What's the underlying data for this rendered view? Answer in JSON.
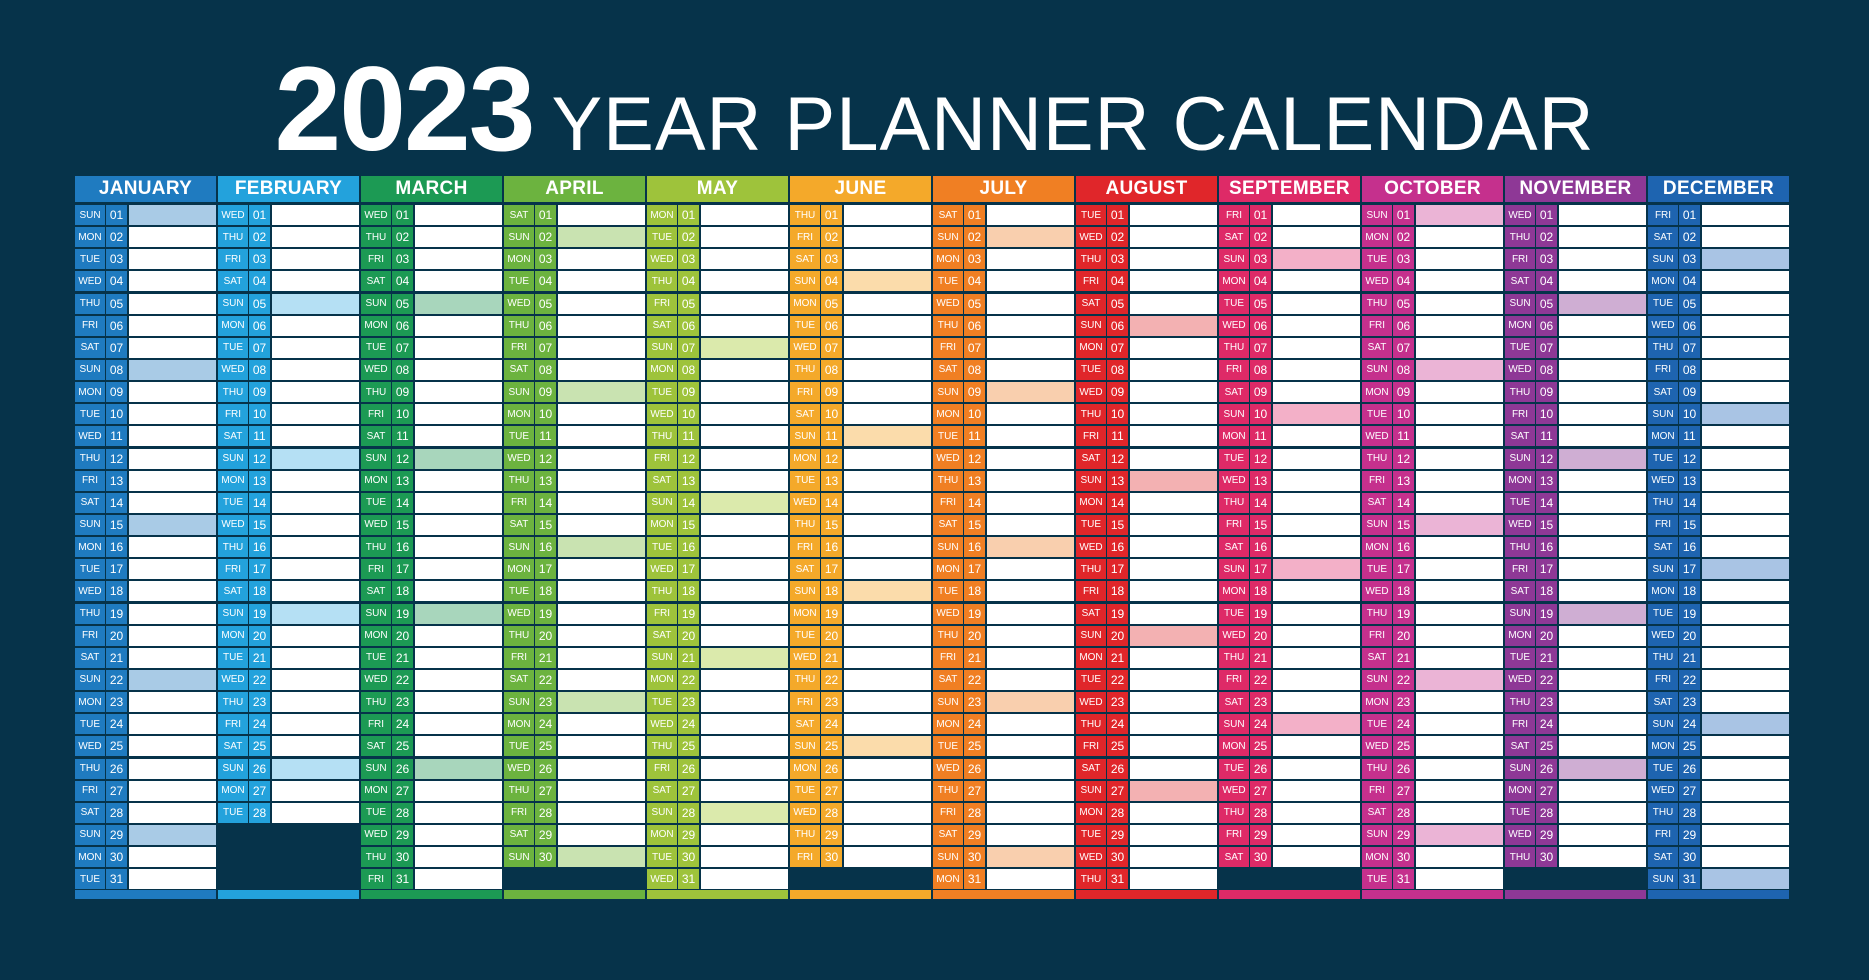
{
  "header": {
    "year": "2023",
    "subtitle": "YEAR PLANNER CALENDAR"
  },
  "months": [
    {
      "name": "JANUARY",
      "color": "#1f7bc0",
      "tint": "#a9cbe6",
      "first_dow": 0,
      "days": 31
    },
    {
      "name": "FEBRUARY",
      "color": "#23a2dc",
      "tint": "#b5e0f4",
      "first_dow": 3,
      "days": 28
    },
    {
      "name": "MARCH",
      "color": "#1c9a54",
      "tint": "#a8d6bc",
      "first_dow": 3,
      "days": 31
    },
    {
      "name": "APRIL",
      "color": "#6cb33f",
      "tint": "#c9e3b1",
      "first_dow": 6,
      "days": 30
    },
    {
      "name": "MAY",
      "color": "#9ec33b",
      "tint": "#dbeaac",
      "first_dow": 1,
      "days": 31
    },
    {
      "name": "JUNE",
      "color": "#f4a92a",
      "tint": "#fbdcab",
      "first_dow": 4,
      "days": 30
    },
    {
      "name": "JULY",
      "color": "#f07f23",
      "tint": "#f9cfae",
      "first_dow": 6,
      "days": 31
    },
    {
      "name": "AUGUST",
      "color": "#e0262a",
      "tint": "#f3b1b2",
      "first_dow": 2,
      "days": 31
    },
    {
      "name": "SEPTEMBER",
      "color": "#de2a67",
      "tint": "#f3b0c8",
      "first_dow": 5,
      "days": 30
    },
    {
      "name": "OCTOBER",
      "color": "#c5308d",
      "tint": "#ebb4d6",
      "first_dow": 0,
      "days": 31
    },
    {
      "name": "NOVEMBER",
      "color": "#8e3896",
      "tint": "#cfaed3",
      "first_dow": 3,
      "days": 30
    },
    {
      "name": "DECEMBER",
      "color": "#1e64b0",
      "tint": "#a9c4e4",
      "first_dow": 5,
      "days": 31
    }
  ],
  "weekday_labels": [
    "SUN",
    "MON",
    "TUE",
    "WED",
    "THU",
    "FRI",
    "SAT"
  ],
  "highlight_weekday": "SUN"
}
